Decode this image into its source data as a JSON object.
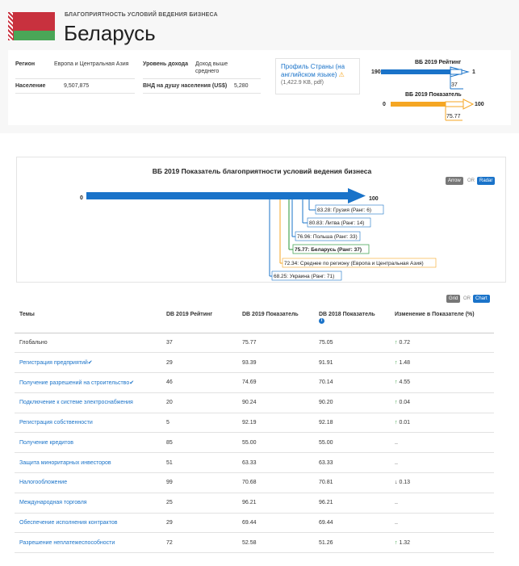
{
  "header": {
    "kicker": "БЛАГОПРИЯТНОСТЬ УСЛОВИЙ ВЕДЕНИЯ БИЗНЕСА",
    "country": "Беларусь"
  },
  "info": {
    "region_label": "Регион",
    "region_value": "Европа и Центральная Азия",
    "income_label": "Уровень дохода",
    "income_value_line1": "Доход выше",
    "income_value_line2": "среднего",
    "population_label": "Население",
    "population_value": "9,507,875",
    "gni_label": "ВНД на душу населения (US$)",
    "gni_value": "5,280"
  },
  "profile": {
    "link_line1": "Профиль Страны (на",
    "link_line2": "английском языке)",
    "warn_icon": "⚠",
    "size": "(1,422.9 KB, pdf)"
  },
  "mini_rank": {
    "title": "ВБ 2019 Рейтинг",
    "left": "190",
    "right": "1",
    "value": "37"
  },
  "mini_score": {
    "title": "ВБ 2019 Показатель",
    "left": "0",
    "right": "100",
    "value": "75.77"
  },
  "chart": {
    "title": "ВБ 2019 Показатель благоприятности условий ведения бизнеса",
    "toggle_arrow": "Arrow",
    "toggle_or": "OR",
    "toggle_radar": "Radar",
    "min_label": "0",
    "max_label": "100",
    "labels": [
      "83.28: Грузия (Ранг: 6)",
      "80.83: Литва (Ранг: 14)",
      "76.96: Польша (Ранг: 33)",
      "75.77: Беларусь (Ранг: 37)",
      "72.34: Среднее по региону (Европа и Центральная Азия)",
      "68.25: Украина (Ранг: 71)"
    ],
    "accent": "#1a73c9"
  },
  "table_toggle": {
    "grid": "Grid",
    "or": "OR",
    "chart": "Chart"
  },
  "table": {
    "headers": [
      "Темы",
      "DB 2019 Рейтинг",
      "DB 2019 Показатель",
      "DB 2018 Показатель",
      "Изменение в Показателе (%)"
    ],
    "info_icon": "i",
    "rows": [
      {
        "topic": "Глобально",
        "rank": "37",
        "s2019": "75.77",
        "s2018": "75.05",
        "arrow": "↑",
        "change": "0.72"
      },
      {
        "topic": "Регистрация предприятий",
        "check": "✔",
        "rank": "29",
        "s2019": "93.39",
        "s2018": "91.91",
        "arrow": "↑",
        "change": "1.48"
      },
      {
        "topic": "Получение разрешений на строительство",
        "check": "✔",
        "rank": "46",
        "s2019": "74.69",
        "s2018": "70.14",
        "arrow": "↑",
        "change": "4.55"
      },
      {
        "topic": "Подключение к системе электроснабжения",
        "rank": "20",
        "s2019": "90.24",
        "s2018": "90.20",
        "arrow": "↑",
        "change": "0.04"
      },
      {
        "topic": "Регистрация собственности",
        "rank": "5",
        "s2019": "92.19",
        "s2018": "92.18",
        "arrow": "↑",
        "change": "0.01"
      },
      {
        "topic": "Получение кредитов",
        "rank": "85",
        "s2019": "55.00",
        "s2018": "55.00",
        "arrow": "",
        "change": ".."
      },
      {
        "topic": "Защита миноритарных инвесторов",
        "rank": "51",
        "s2019": "63.33",
        "s2018": "63.33",
        "arrow": "",
        "change": ".."
      },
      {
        "topic": "Налогообложение",
        "rank": "99",
        "s2019": "70.68",
        "s2018": "70.81",
        "arrow": "↓",
        "change": "0.13"
      },
      {
        "topic": "Международная торговля",
        "rank": "25",
        "s2019": "96.21",
        "s2018": "96.21",
        "arrow": "",
        "change": ".."
      },
      {
        "topic": "Обеспечение исполнения контрактов",
        "rank": "29",
        "s2019": "69.44",
        "s2018": "69.44",
        "arrow": "",
        "change": ".."
      },
      {
        "topic": "Разрешение неплатежеспособности",
        "rank": "72",
        "s2019": "52.58",
        "s2018": "51.26",
        "arrow": "↑",
        "change": "1.32"
      }
    ]
  }
}
